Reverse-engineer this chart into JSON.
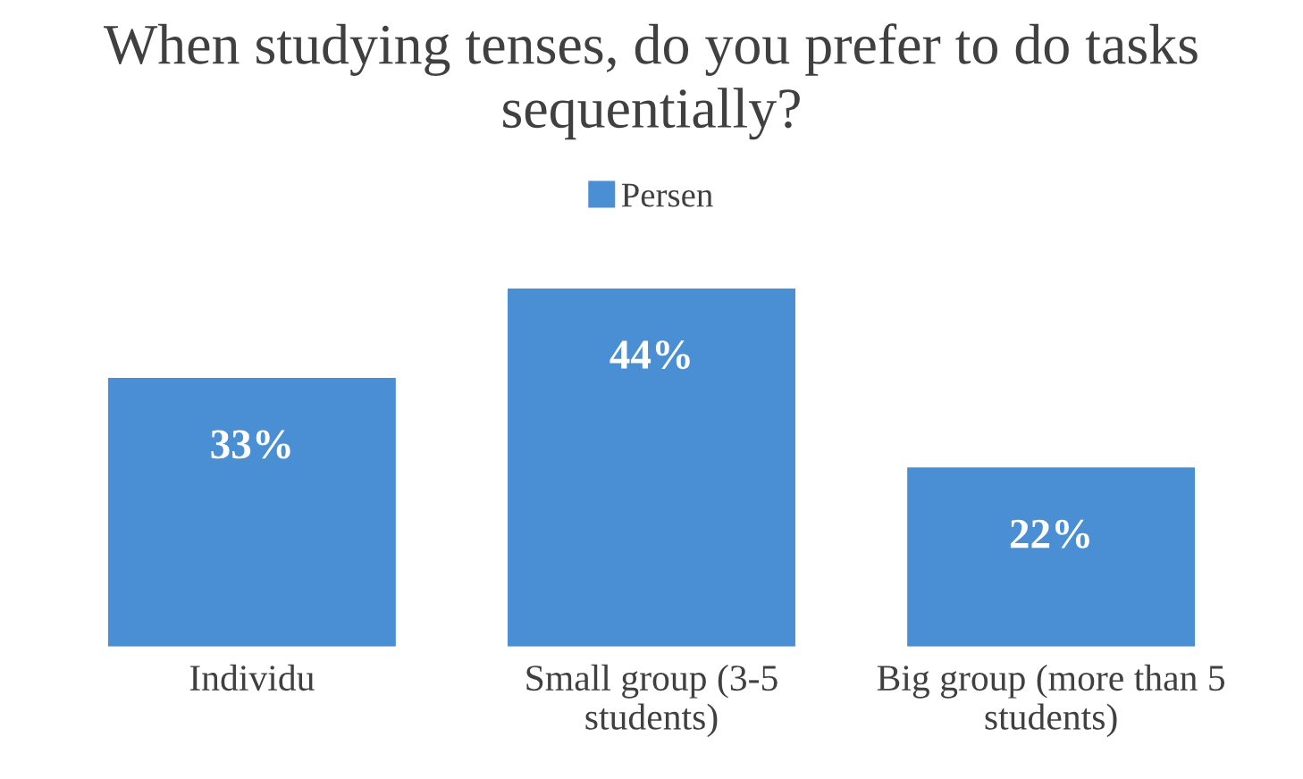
{
  "chart_data": {
    "type": "bar",
    "title": "When studying tenses, do you prefer to do tasks sequentially?",
    "categories": [
      "Individu",
      "Small group (3-5 students)",
      "Big group (more than 5 students)"
    ],
    "series": [
      {
        "name": "Persen",
        "color": "#4a8ed4",
        "values": [
          33,
          44,
          22
        ],
        "value_labels": [
          "33%",
          "44%",
          "22%"
        ]
      }
    ],
    "legend": "top"
  }
}
